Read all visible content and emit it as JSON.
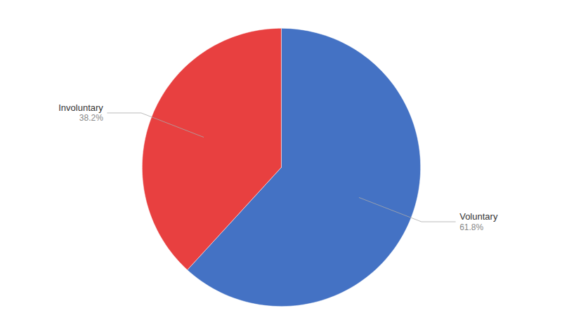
{
  "chart_data": {
    "type": "pie",
    "categories": [
      "Voluntary",
      "Involuntary"
    ],
    "values": [
      61.8,
      38.2
    ],
    "value_labels": [
      "61.8%",
      "38.2%"
    ],
    "colors": [
      "#4472C4",
      "#E84040"
    ],
    "data_labels": true
  }
}
